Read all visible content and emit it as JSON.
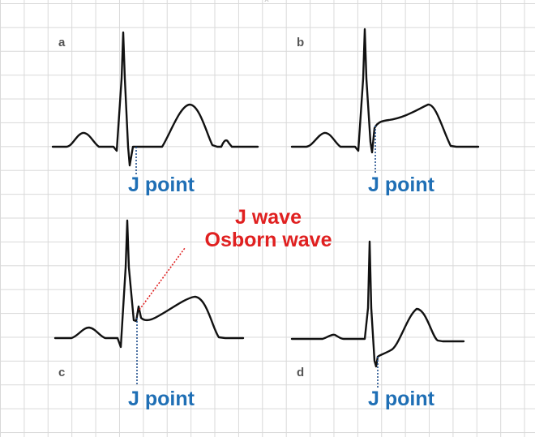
{
  "panels": {
    "a": {
      "letter": "a",
      "j_label": "J point"
    },
    "b": {
      "letter": "b",
      "j_label": "J point"
    },
    "c": {
      "letter": "c",
      "j_label": "J point",
      "wave_label_1": "J wave",
      "wave_label_2": "Osborn wave"
    },
    "d": {
      "letter": "d",
      "j_label": "J point"
    }
  },
  "colors": {
    "trace": "#111111",
    "j_point": "#1f6fb5",
    "j_wave": "#e02020",
    "grid": "#d9d9d9",
    "panel_letter": "#555555"
  }
}
